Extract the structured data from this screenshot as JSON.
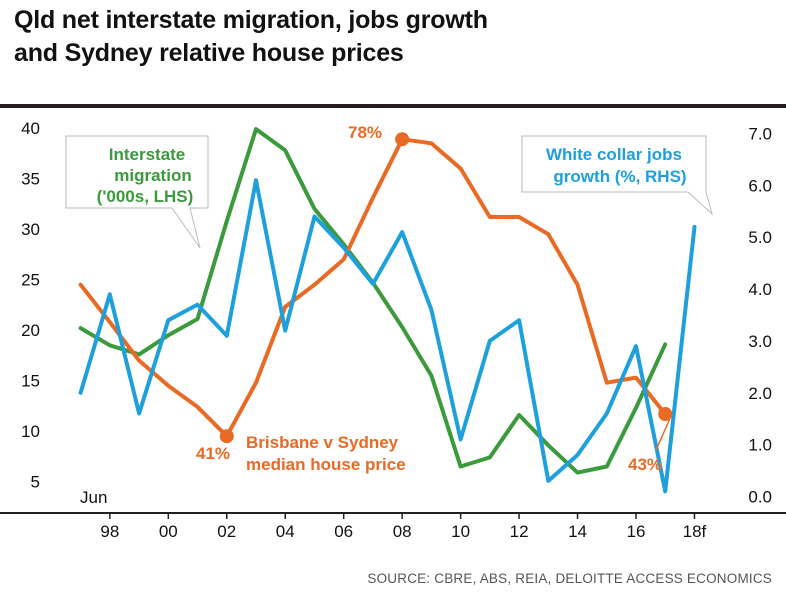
{
  "header": {
    "title_line1": "Qld net interstate migration, jobs growth",
    "title_line2": "and Sydney relative house prices"
  },
  "source": "SOURCE: CBRE, ABS, REIA, DELOITTE ACCESS ECONOMICS",
  "colors": {
    "migration": "#3a9a3c",
    "jobs": "#1ea0dc",
    "price": "#e86a24",
    "text": "#111111",
    "rule": "#231f20"
  },
  "chart_data": {
    "type": "line",
    "title": "Qld net interstate migration, jobs growth and Sydney relative house prices",
    "x_label_extra": "Jun",
    "x_ticks": [
      {
        "x": 1998,
        "label": "98"
      },
      {
        "x": 2000,
        "label": "00"
      },
      {
        "x": 2002,
        "label": "02"
      },
      {
        "x": 2004,
        "label": "04"
      },
      {
        "x": 2006,
        "label": "06"
      },
      {
        "x": 2008,
        "label": "08"
      },
      {
        "x": 2010,
        "label": "10"
      },
      {
        "x": 2012,
        "label": "12"
      },
      {
        "x": 2014,
        "label": "14"
      },
      {
        "x": 2016,
        "label": "16"
      },
      {
        "x": 2018,
        "label": "18f"
      }
    ],
    "xlim": [
      1996.5,
      2018.6
    ],
    "left_axis": {
      "label": "'000s",
      "ylim": [
        2,
        41
      ],
      "ticks": [
        5,
        10,
        15,
        20,
        25,
        30,
        35,
        40
      ]
    },
    "right_axis": {
      "label": "%",
      "ylim": [
        -0.3,
        7.3
      ],
      "ticks": [
        0.0,
        1.0,
        2.0,
        3.0,
        4.0,
        5.0,
        6.0,
        7.0
      ],
      "tick_labels": [
        "0.0",
        "1.0",
        "2.0",
        "3.0",
        "4.0",
        "5.0",
        "6.0",
        "7.0"
      ]
    },
    "series": [
      {
        "name": "Interstate migration ('000s, LHS)",
        "key": "migration",
        "axis": "left",
        "x": [
          1997,
          1998,
          1999,
          2000,
          2001,
          2002,
          2003,
          2004,
          2005,
          2006,
          2007,
          2008,
          2009,
          2010,
          2011,
          2012,
          2013,
          2014,
          2015,
          2016,
          2017
        ],
        "y": [
          20.2,
          18.5,
          17.6,
          19.5,
          21.1,
          30.8,
          39.9,
          37.8,
          32.0,
          28.5,
          24.7,
          20.3,
          15.5,
          6.5,
          7.4,
          11.6,
          8.6,
          5.9,
          6.5,
          12.3,
          18.6
        ]
      },
      {
        "name": "White collar jobs growth (%, RHS)",
        "key": "jobs",
        "axis": "right",
        "x": [
          1997,
          1998,
          1999,
          2000,
          2001,
          2002,
          2003,
          2004,
          2005,
          2006,
          2007,
          2008,
          2009,
          2010,
          2011,
          2012,
          2013,
          2014,
          2015,
          2016,
          2017,
          2018
        ],
        "y": [
          2.0,
          3.9,
          1.6,
          3.4,
          3.7,
          3.1,
          6.1,
          3.2,
          5.4,
          4.8,
          4.1,
          5.1,
          3.6,
          1.1,
          3.0,
          3.4,
          0.3,
          0.8,
          1.6,
          2.9,
          0.1,
          5.2
        ]
      },
      {
        "name": "Brisbane v Sydney median house price",
        "key": "price",
        "axis": "left",
        "x": [
          1997,
          1998,
          1999,
          2000,
          2001,
          2002,
          2003,
          2004,
          2005,
          2006,
          2007,
          2008,
          2009,
          2010,
          2011,
          2012,
          2013,
          2014,
          2015,
          2016,
          2017
        ],
        "y": [
          24.5,
          20.8,
          17.0,
          14.5,
          12.4,
          9.5,
          14.8,
          22.3,
          24.5,
          27.0,
          33.1,
          38.9,
          38.5,
          36.0,
          31.2,
          31.2,
          29.5,
          24.5,
          14.8,
          15.3,
          11.7
        ]
      }
    ],
    "annotations": {
      "migration_label_line1": "Interstate",
      "migration_label_line2": "migration",
      "migration_label_line3": "('000s, LHS)",
      "jobs_label_line1": "White collar jobs",
      "jobs_label_line2": "growth (%, RHS)",
      "price_label_line1": "Brisbane v Sydney",
      "price_label_line2": "median house price",
      "price_peak": "78%",
      "price_2002": "41%",
      "price_2017": "43%"
    }
  }
}
